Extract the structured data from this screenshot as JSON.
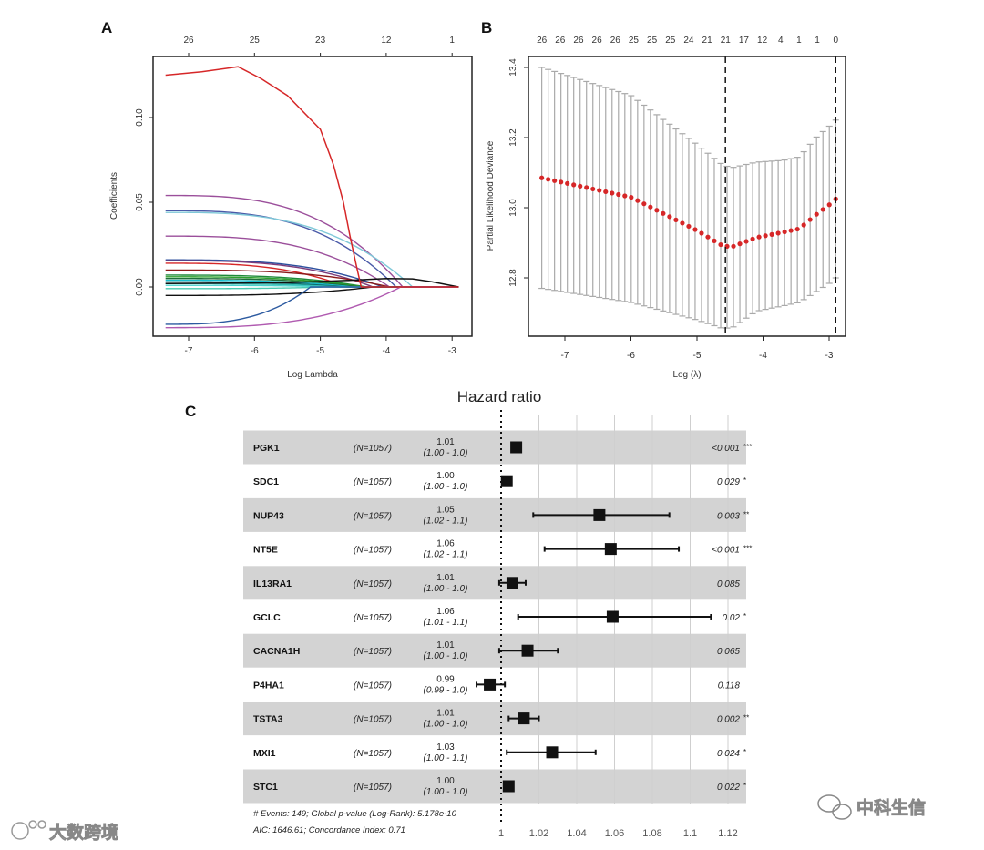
{
  "chart_data": [
    {
      "panel": "A",
      "type": "line",
      "xlabel": "Log Lambda",
      "ylabel": "Coefficients",
      "xlim": [
        -7.5,
        -2.8
      ],
      "ylim": [
        -0.03,
        0.135
      ],
      "xticks": [
        -7,
        -6,
        -5,
        -4,
        -3
      ],
      "yticks": [
        0.0,
        0.05,
        0.1
      ],
      "ytick_labels": [
        "0.00",
        "0.05",
        "0.10"
      ],
      "top_axis": {
        "x": [
          -7,
          -6,
          -5,
          -4,
          -3
        ],
        "labels": [
          "26",
          "25",
          "23",
          "12",
          "1"
        ]
      },
      "x_start": -7.35,
      "x_end": -2.9,
      "red_path": {
        "color": "#d62728",
        "x": [
          -7.35,
          -6.8,
          -6.25,
          -5.9,
          -5.5,
          -5.0,
          -4.8,
          -4.65,
          -4.55,
          -4.45,
          -4.38,
          -2.9
        ],
        "y": [
          0.125,
          0.127,
          0.13,
          0.123,
          0.113,
          0.093,
          0.072,
          0.05,
          0.03,
          0.012,
          0.0,
          0.0
        ]
      },
      "series": [
        {
          "color": "#9b4f9b",
          "start": 0.054,
          "zero_at": -3.75
        },
        {
          "color": "#4a5aa8",
          "start": 0.045,
          "zero_at": -3.85
        },
        {
          "color": "#7ec8d8",
          "start": 0.044,
          "zero_at": -3.6
        },
        {
          "color": "#9b4f9b",
          "start": 0.03,
          "zero_at": -3.95
        },
        {
          "color": "#2c4f9e",
          "start": 0.016,
          "zero_at": -4.05
        },
        {
          "color": "#7a3a7a",
          "start": 0.0155,
          "zero_at": -4.2
        },
        {
          "color": "#d62728",
          "start": 0.014,
          "zero_at": -4.6
        },
        {
          "color": "#8b1a1a",
          "start": 0.01,
          "zero_at": -3.95
        },
        {
          "color": "#1f8a3a",
          "start": 0.007,
          "zero_at": -4.3
        },
        {
          "color": "#2ca02c",
          "start": 0.006,
          "zero_at": -4.35
        },
        {
          "color": "#1f6f3a",
          "start": 0.005,
          "zero_at": -4.4
        },
        {
          "color": "#17becf",
          "start": 0.004,
          "zero_at": -4.5
        },
        {
          "color": "#0b6b6b",
          "start": 0.003,
          "zero_at": -4.6
        },
        {
          "color": "#2fb8b0",
          "start": 0.002,
          "zero_at": -4.7
        },
        {
          "color": "#48d1cc",
          "start": 0.001,
          "zero_at": -4.8
        },
        {
          "color": "#48c9b0",
          "start": -0.001,
          "zero_at": -4.9
        },
        {
          "color": "#111111",
          "start": -0.005,
          "zero_at": -4.2
        },
        {
          "color": "#2c5aa0",
          "start": -0.022,
          "zero_at": -5.15
        },
        {
          "color": "#b05ab0",
          "start": -0.024,
          "zero_at": -3.78
        }
      ],
      "black_persistent": {
        "color": "#111111",
        "x": [
          -7.35,
          -5.5,
          -4.5,
          -4.0,
          -3.6,
          -3.3,
          -2.9
        ],
        "y": [
          0.002,
          0.0025,
          0.004,
          0.005,
          0.0048,
          0.003,
          0.0
        ]
      }
    },
    {
      "panel": "B",
      "type": "scatter",
      "xlabel": "Log (λ)",
      "ylabel": "Partial Likelihood Deviance",
      "xlim": [
        -7.55,
        -2.8
      ],
      "ylim": [
        12.63,
        13.43
      ],
      "xticks": [
        -7,
        -6,
        -5,
        -4,
        -3
      ],
      "yticks": [
        12.8,
        13.0,
        13.2,
        13.4
      ],
      "ytick_labels": [
        "12.8",
        "13.0",
        "13.2",
        "13.4"
      ],
      "n_points": 47,
      "x_start": -7.35,
      "x_end": -2.9,
      "anchors_x": [
        -7.35,
        -6.0,
        -5.0,
        -4.6,
        -4.45,
        -4.1,
        -3.7,
        -3.45,
        -3.2,
        -2.95,
        -2.9
      ],
      "mean": [
        13.085,
        13.03,
        12.935,
        12.89,
        12.89,
        12.915,
        12.93,
        12.94,
        12.98,
        13.015,
        13.025
      ],
      "upper": [
        13.4,
        13.32,
        13.18,
        13.12,
        13.115,
        13.13,
        13.135,
        13.145,
        13.2,
        13.24,
        13.25
      ],
      "lower": [
        12.77,
        12.73,
        12.68,
        12.655,
        12.66,
        12.705,
        12.72,
        12.73,
        12.76,
        12.79,
        12.8
      ],
      "vlines": [
        -4.57,
        -2.9
      ],
      "top_axis": {
        "labels": [
          "26",
          "26",
          "26",
          "26",
          "26",
          "25",
          "25",
          "25",
          "24",
          "21",
          "21",
          "17",
          "12",
          "4",
          "1",
          "1",
          "0"
        ]
      },
      "mean_color": "#d62728",
      "bar_color": "#a9a9a9"
    },
    {
      "panel": "C",
      "type": "forest",
      "title": "Hazard ratio",
      "xlim": [
        0.985,
        1.125
      ],
      "xticks": [
        1,
        1.02,
        1.04,
        1.06,
        1.08,
        1.1,
        1.12
      ],
      "xtick_labels": [
        "1",
        "1.02",
        "1.04",
        "1.06",
        "1.08",
        "1.1",
        "1.12"
      ],
      "rows": [
        {
          "gene": "PGK1",
          "n": "(N=1057)",
          "hr": "1.01",
          "ci": "(1.00 - 1.0)",
          "p": "<0.001",
          "stars": "***",
          "est": 1.008,
          "lo": 1.006,
          "hi": 1.01
        },
        {
          "gene": "SDC1",
          "n": "(N=1057)",
          "hr": "1.00",
          "ci": "(1.00 - 1.0)",
          "p": "0.029",
          "stars": "*",
          "est": 1.003,
          "lo": 1.002,
          "hi": 1.004
        },
        {
          "gene": "NUP43",
          "n": "(N=1057)",
          "hr": "1.05",
          "ci": "(1.02 - 1.1)",
          "p": "0.003",
          "stars": "**",
          "est": 1.052,
          "lo": 1.017,
          "hi": 1.089
        },
        {
          "gene": "NT5E",
          "n": "(N=1057)",
          "hr": "1.06",
          "ci": "(1.02 - 1.1)",
          "p": "<0.001",
          "stars": "***",
          "est": 1.058,
          "lo": 1.023,
          "hi": 1.094
        },
        {
          "gene": "IL13RA1",
          "n": "(N=1057)",
          "hr": "1.01",
          "ci": "(1.00 - 1.0)",
          "p": "0.085",
          "stars": "",
          "est": 1.006,
          "lo": 0.999,
          "hi": 1.013
        },
        {
          "gene": "GCLC",
          "n": "(N=1057)",
          "hr": "1.06",
          "ci": "(1.01 - 1.1)",
          "p": "0.02",
          "stars": "*",
          "est": 1.059,
          "lo": 1.009,
          "hi": 1.111
        },
        {
          "gene": "CACNA1H",
          "n": "(N=1057)",
          "hr": "1.01",
          "ci": "(1.00 - 1.0)",
          "p": "0.065",
          "stars": "",
          "est": 1.014,
          "lo": 0.999,
          "hi": 1.03
        },
        {
          "gene": "P4HA1",
          "n": "(N=1057)",
          "hr": "0.99",
          "ci": "(0.99 - 1.0)",
          "p": "0.118",
          "stars": "",
          "est": 0.994,
          "lo": 0.987,
          "hi": 1.002
        },
        {
          "gene": "TSTA3",
          "n": "(N=1057)",
          "hr": "1.01",
          "ci": "(1.00 - 1.0)",
          "p": "0.002",
          "stars": "**",
          "est": 1.012,
          "lo": 1.004,
          "hi": 1.02
        },
        {
          "gene": "MXI1",
          "n": "(N=1057)",
          "hr": "1.03",
          "ci": "(1.00 - 1.1)",
          "p": "0.024",
          "stars": "*",
          "est": 1.027,
          "lo": 1.003,
          "hi": 1.05
        },
        {
          "gene": "STC1",
          "n": "(N=1057)",
          "hr": "1.00",
          "ci": "(1.00 - 1.0)",
          "p": "0.022",
          "stars": "*",
          "est": 1.004,
          "lo": 1.002,
          "hi": 1.006
        }
      ],
      "footer": [
        "# Events: 149; Global p-value (Log-Rank): 5.178e-10",
        "AIC: 1646.61; Concordance Index: 0.71"
      ],
      "band_color": "#d3d3d3"
    }
  ],
  "panel_labels": {
    "a": "A",
    "b": "B",
    "c": "C"
  },
  "watermarks": {
    "left": "大数跨境",
    "right": "中科生信"
  }
}
